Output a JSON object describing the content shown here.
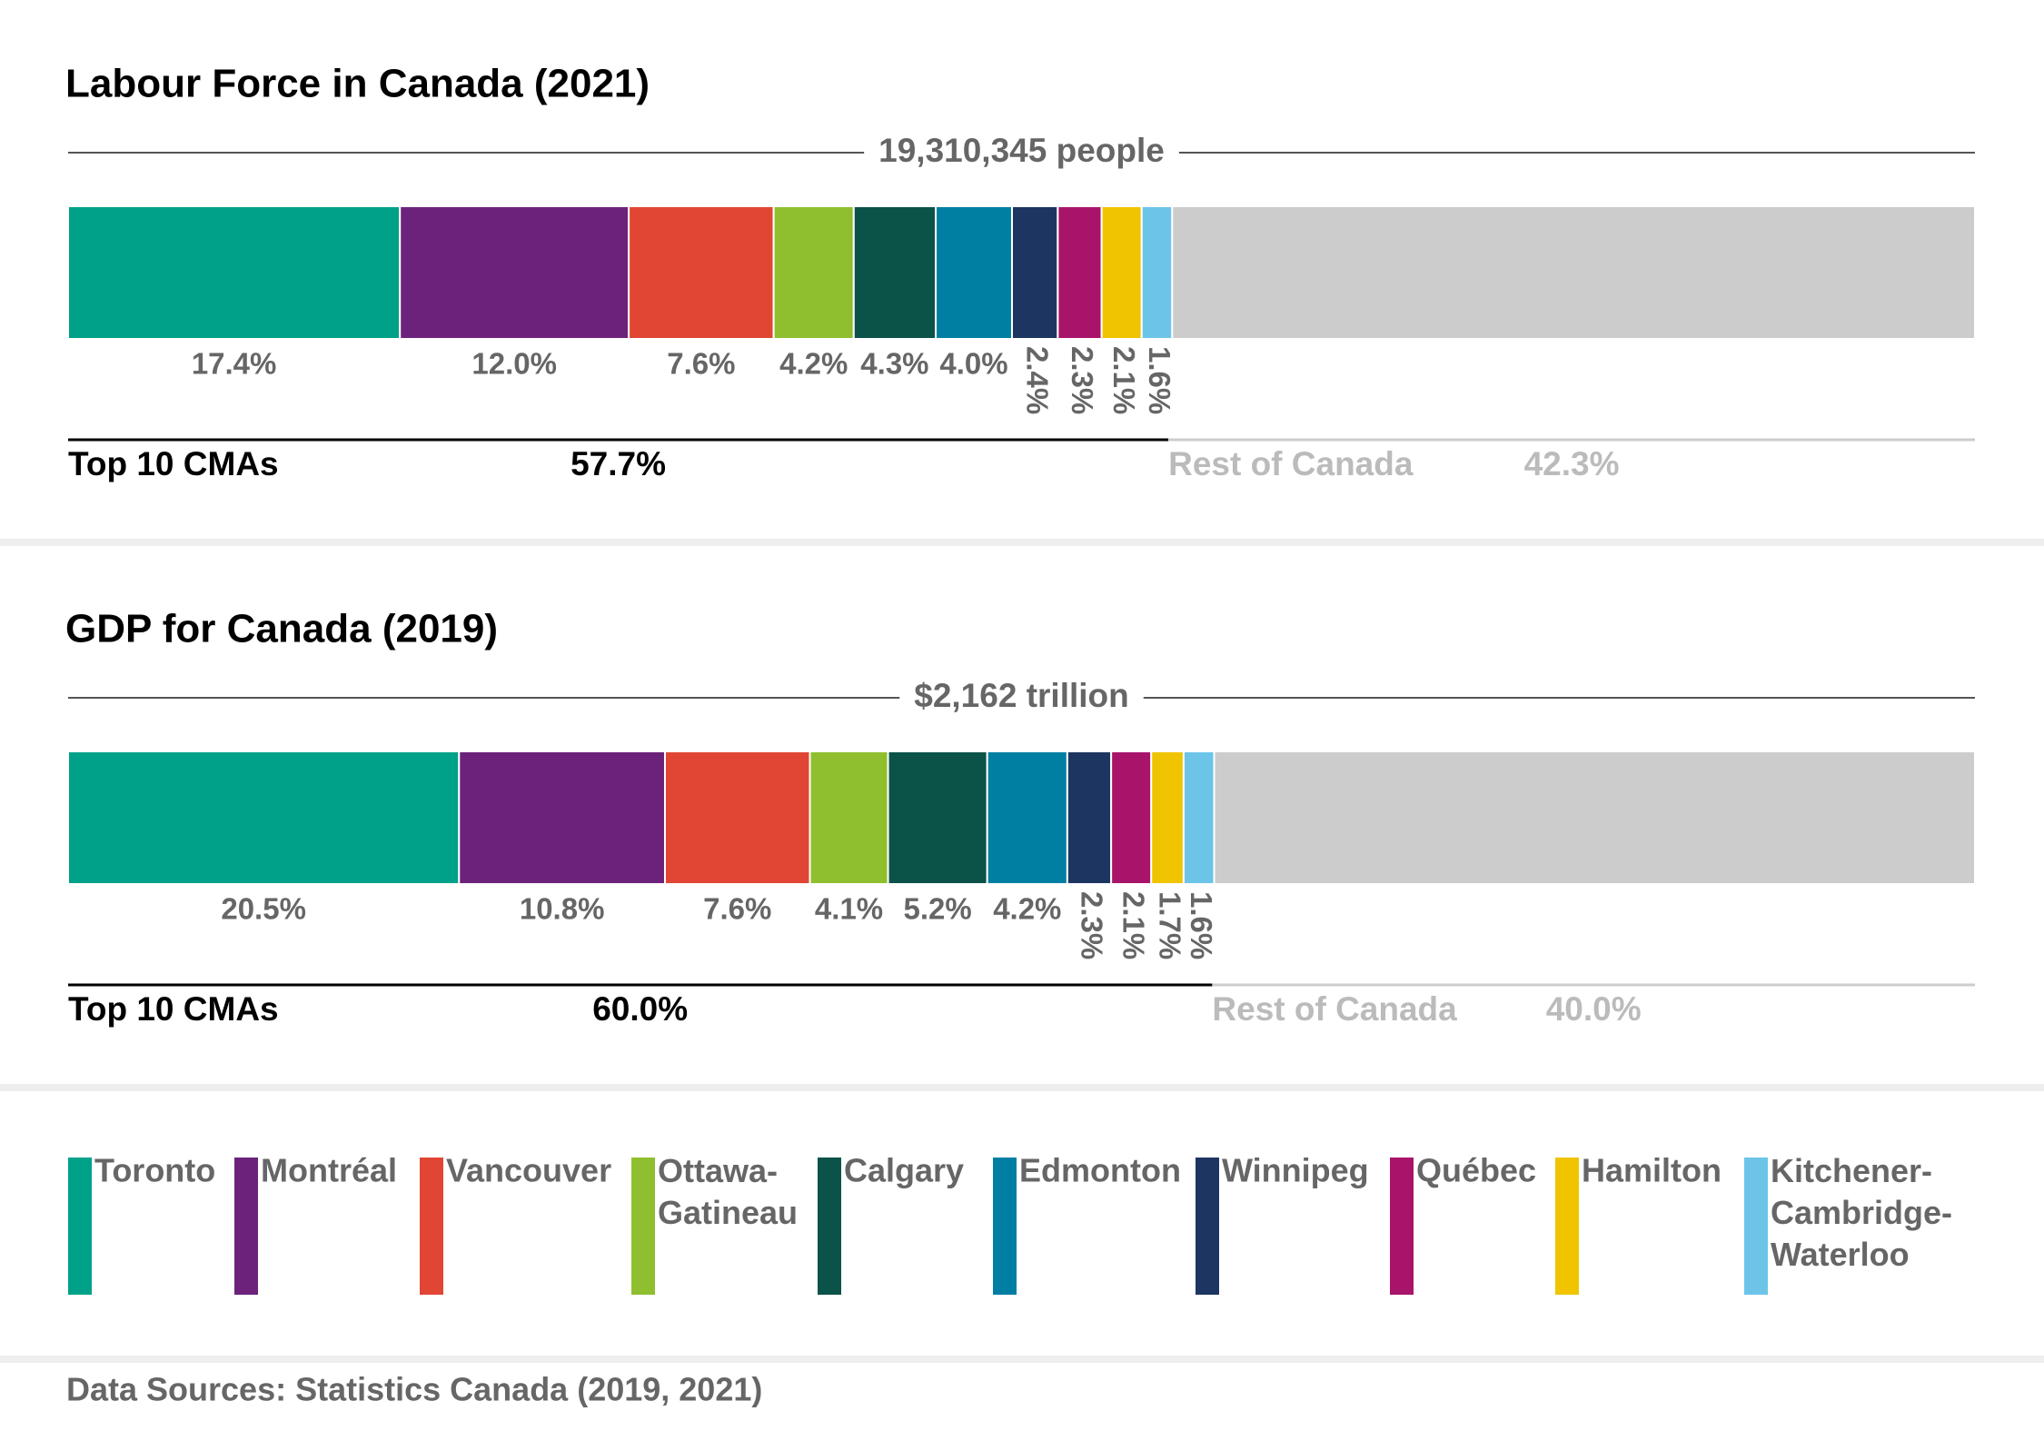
{
  "chart_data": [
    {
      "type": "stacked-bar",
      "title": "Labour Force in Canada (2021)",
      "total_label": "19,310,345 people",
      "values": [
        17.4,
        12.0,
        7.6,
        4.2,
        4.3,
        4.0,
        2.4,
        2.3,
        2.1,
        1.6
      ],
      "value_labels": [
        "17.4%",
        "12.0%",
        "7.6%",
        "4.2%",
        "4.3%",
        "4.0%",
        "2.4%",
        "2.3%",
        "2.1%",
        "1.6%"
      ],
      "groups": [
        {
          "name": "Top 10 CMAs",
          "value": 57.7,
          "value_label": "57.7%",
          "color": "#000000"
        },
        {
          "name": "Rest of Canada",
          "value": 42.3,
          "value_label": "42.3%",
          "color": "#cccccc"
        }
      ],
      "xlim": [
        0,
        100
      ]
    },
    {
      "type": "stacked-bar",
      "title": "GDP for Canada (2019)",
      "total_label": "$2,162 trillion",
      "values": [
        20.5,
        10.8,
        7.6,
        4.1,
        5.2,
        4.2,
        2.3,
        2.1,
        1.7,
        1.6
      ],
      "value_labels": [
        "20.5%",
        "10.8%",
        "7.6%",
        "4.1%",
        "5.2%",
        "4.2%",
        "2.3%",
        "2.1%",
        "1.7%",
        "1.6%"
      ],
      "groups": [
        {
          "name": "Top 10 CMAs",
          "value": 60.0,
          "value_label": "60.0%",
          "color": "#000000"
        },
        {
          "name": "Rest of Canada",
          "value": 40.0,
          "value_label": "40.0%",
          "color": "#cccccc"
        }
      ],
      "xlim": [
        0,
        100
      ]
    }
  ],
  "legend": {
    "names": [
      "Toronto",
      "Montréal",
      "Vancouver",
      "Ottawa-Gatineau",
      "Calgary",
      "Edmonton",
      "Winnipeg",
      "Québec",
      "Hamilton",
      "Kitchener-Cambridge-Waterloo"
    ],
    "colors": [
      "#00a189",
      "#6c227a",
      "#e04633",
      "#8fbf2f",
      "#0b5249",
      "#007fa3",
      "#1d3561",
      "#a8146a",
      "#f0c400",
      "#6cc5e9"
    ]
  },
  "source": "Data Sources: Statistics Canada (2019, 2021)"
}
